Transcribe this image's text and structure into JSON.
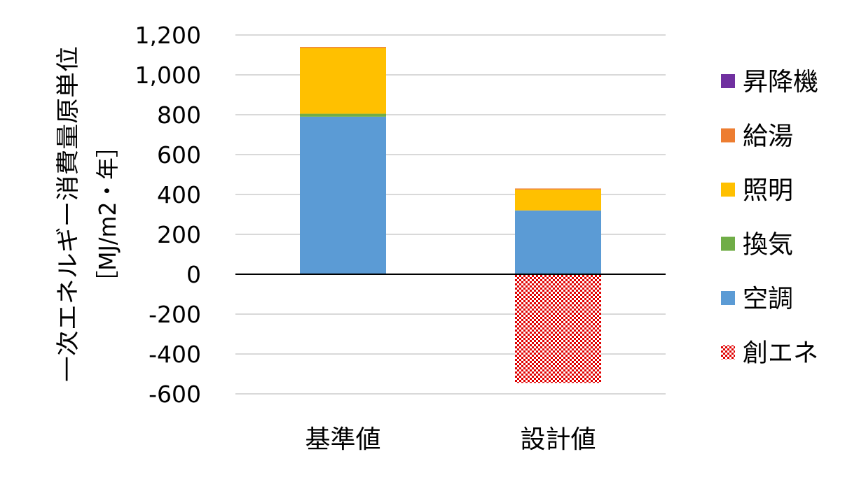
{
  "chart_data": {
    "type": "bar",
    "stacked": true,
    "categories": [
      "基準値",
      "設計値"
    ],
    "ylabel_line1": "一次エネルギー消費量原単位",
    "ylabel_line2": "［MJ/m2・年］",
    "ylim": [
      -600,
      1200
    ],
    "yticks": [
      1200,
      1000,
      800,
      600,
      400,
      200,
      0,
      -200,
      -400,
      -600
    ],
    "ytick_labels": [
      "1,200",
      "1,000",
      "800",
      "600",
      "400",
      "200",
      "0",
      "-200",
      "-400",
      "-600"
    ],
    "negative_tick_color": "#ff0000",
    "grid": true,
    "legend_position": "right",
    "series": [
      {
        "name": "昇降機",
        "color": "#7030a0",
        "pattern": false,
        "values": [
          0,
          0
        ]
      },
      {
        "name": "給湯",
        "color": "#ed7d31",
        "pattern": false,
        "values": [
          5,
          5
        ]
      },
      {
        "name": "照明",
        "color": "#ffc000",
        "pattern": false,
        "values": [
          330,
          105
        ]
      },
      {
        "name": "換気",
        "color": "#70ad47",
        "pattern": false,
        "values": [
          15,
          0
        ]
      },
      {
        "name": "空調",
        "color": "#5b9bd5",
        "pattern": false,
        "values": [
          790,
          320
        ]
      },
      {
        "name": "創エネ",
        "color": "#e00000",
        "pattern": true,
        "values": [
          0,
          -545
        ]
      }
    ],
    "stack_order": [
      "空調",
      "換気",
      "照明",
      "給湯",
      "昇降機"
    ]
  }
}
